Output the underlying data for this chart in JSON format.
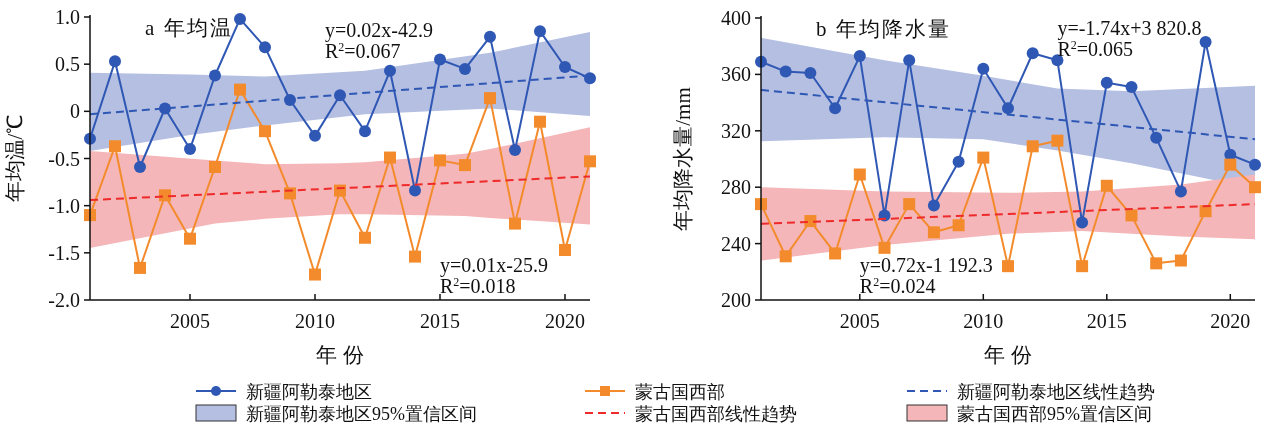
{
  "chart_data": [
    {
      "type": "line",
      "title": "a 年均温",
      "xlabel": "年 份",
      "ylabel": "年均温/℃",
      "legend": "bottom",
      "xlim": [
        2001,
        2021
      ],
      "xticks": [
        2005,
        2010,
        2015,
        2020
      ],
      "ylim": [
        -2,
        1
      ],
      "yticks": [
        {
          "value": -2,
          "label": "-2.0"
        },
        {
          "value": -1.5,
          "label": "-1.5"
        },
        {
          "value": -1,
          "label": "-1.0"
        },
        {
          "value": -0.5,
          "label": "-0.5"
        },
        0,
        {
          "value": 0.5,
          "label": "0.5"
        },
        {
          "value": 1,
          "label": "1.0"
        }
      ],
      "annotations": [
        "y=0.02x-42.9",
        "R$^{2}$=0.067",
        "y=0.01x-25.9",
        "R$^{2}$=0.018"
      ],
      "series": [
        {
          "type": "area",
          "name": "新疆阿勒泰地区95%置信区间",
          "color": "#b4bfe2",
          "x": [
            2001,
            2005,
            2008,
            2012,
            2017,
            2021
          ],
          "values": [
            null,
            null,
            null,
            null,
            null,
            null
          ],
          "lower": [
            -0.42,
            -0.25,
            -0.15,
            -0.03,
            0.03,
            -0.05
          ],
          "upper": [
            0.41,
            0.39,
            0.37,
            0.43,
            0.62,
            0.84
          ]
        },
        {
          "type": "area",
          "name": "蒙古国西部95%置信区间",
          "color": "#f4b6b8",
          "x": [
            2001,
            2006,
            2008,
            2011,
            2012,
            2016,
            2017,
            2021
          ],
          "values": [
            null,
            null,
            null,
            null,
            null,
            null,
            null,
            null
          ],
          "lower": [
            -1.45,
            -1.19,
            -1.14,
            -1.09,
            -1.09,
            -1.11,
            -1.13,
            -1.2
          ],
          "upper": [
            -0.42,
            -0.52,
            -0.56,
            -0.55,
            -0.54,
            -0.45,
            -0.4,
            -0.17
          ]
        },
        {
          "name": "新疆阿勒泰地区",
          "color": "#2f57b4",
          "marker": "circle",
          "x": [
            2001,
            2002,
            2003,
            2004,
            2005,
            2006,
            2007,
            2008,
            2009,
            2010,
            2011,
            2012,
            2013,
            2014,
            2015,
            2016,
            2017,
            2018,
            2019,
            2020,
            2021
          ],
          "values": [
            -0.29,
            0.53,
            -0.59,
            0.03,
            -0.4,
            0.38,
            0.98,
            0.68,
            0.12,
            -0.26,
            0.17,
            -0.21,
            0.43,
            -0.84,
            0.55,
            0.45,
            0.79,
            -0.41,
            0.85,
            0.47,
            0.35
          ]
        },
        {
          "name": "蒙古国西部",
          "color": "#f38b2c",
          "marker": "square",
          "x": [
            2001,
            2002,
            2003,
            2004,
            2005,
            2006,
            2007,
            2008,
            2009,
            2010,
            2011,
            2012,
            2013,
            2014,
            2015,
            2016,
            2017,
            2018,
            2019,
            2020,
            2021
          ],
          "values": [
            -1.1,
            -0.37,
            -1.66,
            -0.89,
            -1.35,
            -0.59,
            0.23,
            -0.21,
            -0.87,
            -1.73,
            -0.84,
            -1.34,
            -0.49,
            -1.54,
            -0.52,
            -0.57,
            0.14,
            -1.19,
            -0.11,
            -1.47,
            -0.53
          ]
        },
        {
          "name": "新疆阿勒泰地区线性趋势",
          "color": "#2f57b4",
          "line_style": "dashed",
          "x": [
            2001,
            2021
          ],
          "values": [
            -0.03,
            0.38
          ]
        },
        {
          "name": "蒙古国西部线性趋势",
          "color": "#ee2a2a",
          "line_style": "dashed",
          "x": [
            2001,
            2021
          ],
          "values": [
            -0.94,
            -0.69
          ]
        }
      ]
    },
    {
      "type": "line",
      "title": "b 年均降水量",
      "xlabel": "年 份",
      "ylabel": "年均降水量/mm",
      "xlim": [
        2001,
        2021
      ],
      "xticks": [
        2005,
        2010,
        2015,
        2020
      ],
      "ylim": [
        200,
        400
      ],
      "yticks": [
        200,
        240,
        280,
        320,
        360,
        400
      ],
      "annotations": [
        "y=-1.74x+3 820.8",
        "R$^{2}$=0.065",
        "y=0.72x-1 192.3",
        "R$^{2}$=0.024"
      ],
      "series": [
        {
          "type": "area",
          "color": "#b4bfe2",
          "x": [
            2001,
            2006,
            2010,
            2013,
            2016,
            2021
          ],
          "values": [
            null,
            null,
            null,
            null,
            null,
            null
          ],
          "lower": [
            312.6,
            315.5,
            314,
            306,
            297,
            279
          ],
          "upper": [
            386,
            370,
            359,
            350,
            348,
            352
          ]
        },
        {
          "type": "area",
          "color": "#f4b6b8",
          "x": [
            2001,
            2006,
            2011,
            2014,
            2018,
            2021
          ],
          "values": [
            null,
            null,
            null,
            null,
            null,
            null
          ],
          "lower": [
            228,
            239,
            247,
            249,
            245,
            243
          ],
          "upper": [
            280,
            277,
            276,
            277,
            282,
            289
          ]
        },
        {
          "color": "#2f57b4",
          "marker": "circle",
          "x": [
            2001,
            2002,
            2003,
            2004,
            2005,
            2006,
            2007,
            2008,
            2009,
            2010,
            2011,
            2012,
            2013,
            2014,
            2015,
            2016,
            2017,
            2018,
            2019,
            2020,
            2021
          ],
          "values": [
            369,
            362,
            361,
            336,
            373,
            260,
            370,
            267,
            298,
            364,
            336,
            375,
            370,
            255,
            354,
            351,
            315,
            277,
            383,
            303,
            296
          ]
        },
        {
          "color": "#f38b2c",
          "marker": "square",
          "x": [
            2001,
            2002,
            2003,
            2004,
            2005,
            2006,
            2007,
            2008,
            2009,
            2010,
            2011,
            2012,
            2013,
            2014,
            2015,
            2016,
            2017,
            2018,
            2019,
            2020,
            2021
          ],
          "values": [
            268,
            231,
            256,
            233,
            289,
            237,
            268,
            248,
            253,
            301,
            224,
            309,
            313,
            224,
            281,
            260,
            226,
            228,
            263,
            296,
            280
          ]
        },
        {
          "color": "#2f57b4",
          "line_style": "dashed",
          "x": [
            2001,
            2021
          ],
          "values": [
            349,
            314
          ]
        },
        {
          "color": "#ee2a2a",
          "line_style": "dashed",
          "x": [
            2001,
            2021
          ],
          "values": [
            254,
            268
          ]
        }
      ]
    }
  ]
}
